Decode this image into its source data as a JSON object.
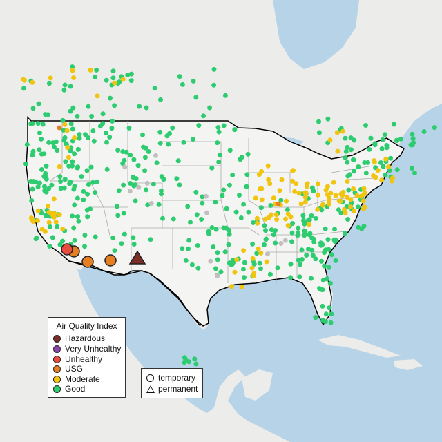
{
  "map": {
    "colors": {
      "water": "#b7d3e8",
      "land": "#ececea",
      "us_land": "#f4f4f2",
      "state_border": "#a8a8a8",
      "country_border": "#000000",
      "good": "#2ecc71",
      "moderate": "#f1c40f",
      "usg": "#e67e22",
      "unhealthy": "#e74c3c",
      "very_unhealthy": "#8e44ad",
      "hazardous": "#7b2d26",
      "no_data": "#c0c0c0"
    }
  },
  "legend_aqi": {
    "title": "Air Quality Index",
    "items": [
      {
        "label": "Hazardous",
        "color": "#7b2d26"
      },
      {
        "label": "Very Unhealthy",
        "color": "#8e44ad"
      },
      {
        "label": "Unhealthy",
        "color": "#e74c3c"
      },
      {
        "label": "USG",
        "color": "#e67e22"
      },
      {
        "label": "Moderate",
        "color": "#f1c40f"
      },
      {
        "label": "Good",
        "color": "#2ecc71"
      }
    ]
  },
  "legend_type": {
    "items": [
      {
        "label": "temporary",
        "shape": "circle"
      },
      {
        "label": "permanent",
        "shape": "triangle"
      }
    ]
  }
}
